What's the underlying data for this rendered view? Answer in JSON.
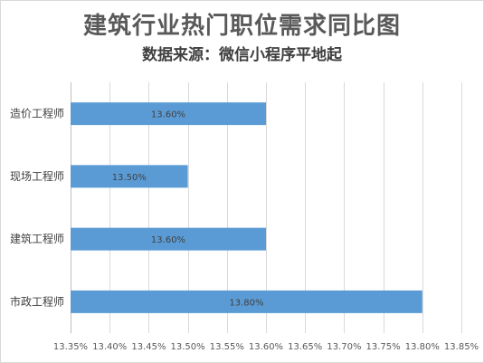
{
  "chart_data": {
    "type": "bar",
    "orientation": "horizontal",
    "title": "建筑行业热门职位需求同比图",
    "subtitle": "数据来源：微信小程序平地起",
    "categories": [
      "造价工程师",
      "现场工程师",
      "建筑工程师",
      "市政工程师"
    ],
    "values": [
      13.6,
      13.5,
      13.6,
      13.8
    ],
    "data_labels": [
      "13.60%",
      "13.50%",
      "13.60%",
      "13.80%"
    ],
    "xlim": [
      13.35,
      13.85
    ],
    "x_ticks": [
      13.35,
      13.4,
      13.45,
      13.5,
      13.55,
      13.6,
      13.65,
      13.7,
      13.75,
      13.8,
      13.85
    ],
    "x_tick_labels": [
      "13.35%",
      "13.40%",
      "13.45%",
      "13.50%",
      "13.55%",
      "13.60%",
      "13.65%",
      "13.70%",
      "13.75%",
      "13.80%",
      "13.85%"
    ],
    "xlabel": "",
    "ylabel": "",
    "grid": true,
    "legend": "none",
    "bar_color": "#5b9bd5"
  }
}
